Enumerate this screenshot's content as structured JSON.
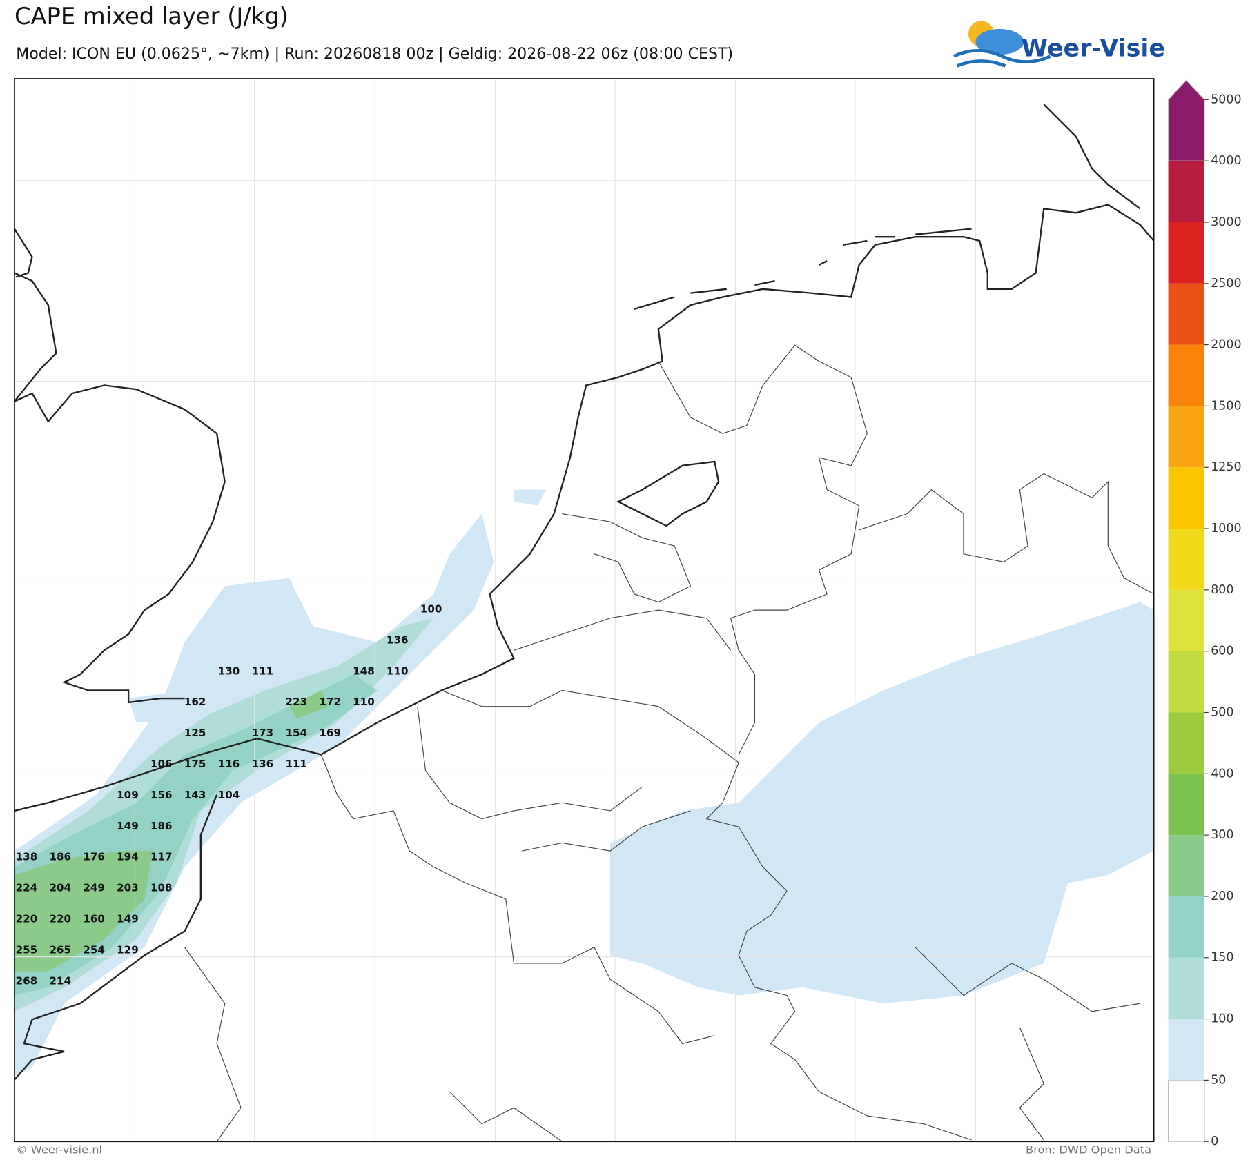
{
  "header": {
    "title": "CAPE mixed layer (J/kg)",
    "subtitle": "Model: ICON EU (0.0625°, ~7km)  |  Run: 20260818 00z  |  Geldig: 2026-08-22 06z (08:00 CEST)",
    "logo": "Weer-Visie"
  },
  "colorbar": {
    "ticks": [
      0,
      50,
      100,
      150,
      200,
      300,
      400,
      500,
      600,
      800,
      1000,
      1250,
      1500,
      2000,
      2500,
      3000,
      4000,
      5000
    ],
    "colors": [
      "#ffffff",
      "#d2e7f6",
      "#b1ddd9",
      "#93d2c4",
      "#8acb8a",
      "#7bc24f",
      "#9bcb3e",
      "#c3da42",
      "#dfe23c",
      "#f1d91c",
      "#f9c400",
      "#f9a514",
      "#f88309",
      "#e85214",
      "#dd2222",
      "#b41d3e",
      "#8a1a6a"
    ]
  },
  "map_labels": [
    100,
    136,
    130,
    111,
    148,
    110,
    162,
    223,
    172,
    110,
    125,
    173,
    154,
    169,
    106,
    175,
    116,
    136,
    111,
    109,
    156,
    143,
    104,
    149,
    186,
    138,
    186,
    176,
    194,
    117,
    224,
    204,
    249,
    203,
    108,
    220,
    220,
    160,
    149,
    255,
    265,
    254,
    129,
    268,
    214
  ],
  "footer": {
    "left": "© Weer-visie.nl",
    "right": "Bron: DWD Open Data"
  }
}
